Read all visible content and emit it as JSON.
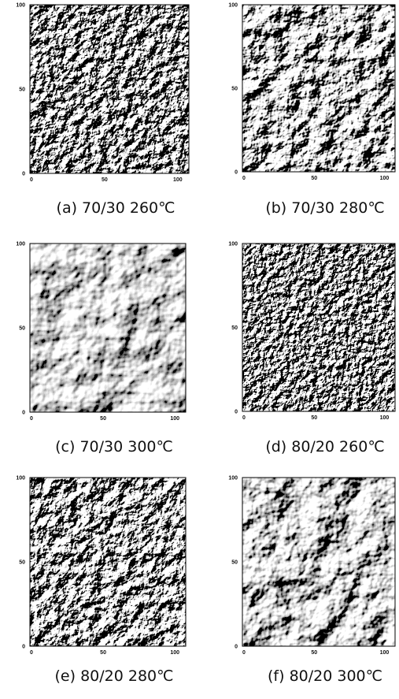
{
  "panels": [
    {
      "caption": "(a) 70/30 260℃",
      "x_ticks": [
        0,
        50,
        100
      ],
      "y_ticks": [
        0,
        50,
        100
      ]
    },
    {
      "caption": "(b) 70/30 280℃",
      "x_ticks": [
        0,
        50,
        100
      ],
      "y_ticks": [
        0,
        50,
        100
      ]
    },
    {
      "caption": "(c) 70/30 300℃",
      "x_ticks": [
        0,
        50,
        100
      ],
      "y_ticks": [
        0,
        50,
        100
      ]
    },
    {
      "caption": "(d) 80/20 260℃",
      "x_ticks": [
        0,
        50,
        100
      ],
      "y_ticks": [
        0,
        50,
        100
      ]
    },
    {
      "caption": "(e) 80/20 280℃",
      "x_ticks": [
        0,
        50,
        100
      ],
      "y_ticks": [
        0,
        50,
        100
      ]
    },
    {
      "caption": "(f) 80/20 300℃",
      "x_ticks": [
        0,
        50,
        100
      ],
      "y_ticks": [
        0,
        50,
        100
      ]
    }
  ]
}
